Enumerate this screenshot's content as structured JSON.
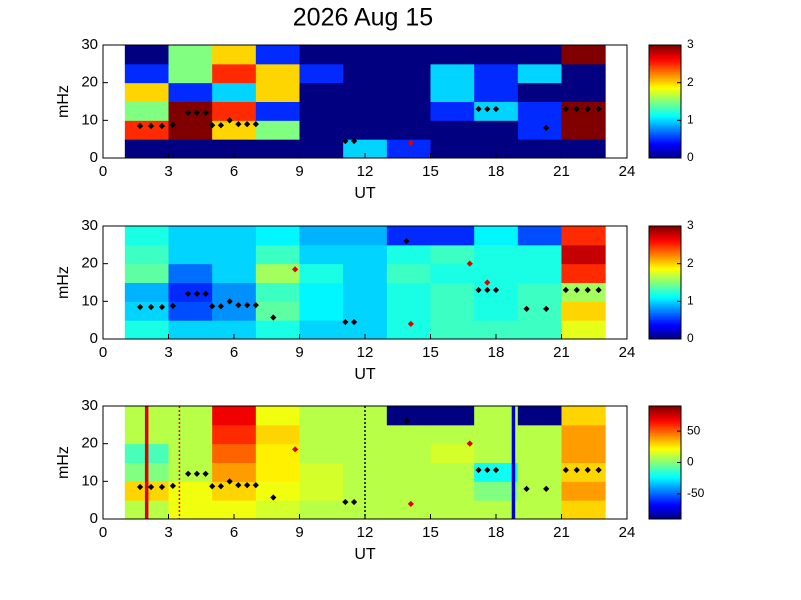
{
  "chart_data": [
    {
      "type": "heatmap",
      "title": "2026 Aug 15",
      "xlabel": "UT",
      "ylabel": "mHz",
      "xlim": [
        0,
        24
      ],
      "xticks": [
        0,
        3,
        6,
        9,
        12,
        15,
        18,
        21,
        24
      ],
      "ylim": [
        0,
        30
      ],
      "yticks": [
        0,
        10,
        20,
        30
      ],
      "x_bins": [
        1,
        3,
        5,
        7,
        9,
        11,
        13,
        15,
        17,
        19,
        21,
        23
      ],
      "y_bins": [
        0,
        5,
        10,
        15,
        20,
        25,
        30
      ],
      "z": [
        [
          0,
          0,
          0,
          0,
          0,
          1,
          0.5,
          0,
          0,
          0,
          0
        ],
        [
          2.5,
          3,
          2,
          1.5,
          0,
          0,
          0,
          0,
          0,
          0.5,
          3
        ],
        [
          1.5,
          3,
          2.5,
          0.5,
          0,
          0,
          0,
          0.5,
          1,
          0.5,
          3
        ],
        [
          2,
          0.5,
          1,
          2,
          0,
          0,
          0,
          1,
          0.5,
          0,
          0
        ],
        [
          0.5,
          1.5,
          2.5,
          2,
          0.5,
          0,
          0,
          1,
          0.5,
          1,
          0
        ],
        [
          0,
          1.5,
          2,
          0.5,
          0,
          0,
          0,
          0,
          0,
          0,
          3
        ]
      ],
      "colormap": "jet",
      "clim": [
        0,
        3
      ],
      "cticks": [
        0,
        1,
        2,
        3
      ],
      "points": [
        {
          "color": "#000000",
          "x": [
            1.7,
            2.2,
            2.7,
            3.2,
            3.9,
            4.3,
            4.7,
            5,
            5.4,
            5.8,
            6.2,
            6.6,
            7,
            11.1,
            11.5,
            17.2,
            17.6,
            18,
            20.3,
            21.2,
            21.7,
            22.2,
            22.7
          ],
          "y": [
            8.5,
            8.5,
            8.5,
            8.8,
            12,
            12,
            12,
            8.7,
            8.7,
            10,
            9,
            9,
            9,
            4.5,
            4.5,
            13,
            13,
            13,
            8,
            13,
            13,
            13,
            13
          ]
        },
        {
          "color": "#dd0000",
          "x": [
            14.1
          ],
          "y": [
            4
          ]
        }
      ],
      "vlines": []
    },
    {
      "type": "heatmap",
      "xlabel": "UT",
      "ylabel": "mHz",
      "xlim": [
        0,
        24
      ],
      "xticks": [
        0,
        3,
        6,
        9,
        12,
        15,
        18,
        21,
        24
      ],
      "ylim": [
        0,
        30
      ],
      "yticks": [
        0,
        10,
        20,
        30
      ],
      "x_bins": [
        1,
        3,
        5,
        7,
        9,
        11,
        13,
        15,
        17,
        19,
        21,
        23
      ],
      "y_bins": [
        0,
        5,
        10,
        15,
        20,
        25,
        30
      ],
      "z": [
        [
          1.2,
          1,
          1,
          1.2,
          1,
          1,
          1.2,
          1.3,
          1.3,
          1.3,
          1.8
        ],
        [
          1,
          0.6,
          0.8,
          1.4,
          1.1,
          1,
          1.2,
          1.3,
          1.2,
          1.3,
          2
        ],
        [
          0.9,
          0.5,
          0.8,
          1.3,
          1.1,
          1,
          1.2,
          1.3,
          1.2,
          1.3,
          1.6
        ],
        [
          1.4,
          0.7,
          1,
          1.6,
          1.2,
          1,
          1.3,
          1.2,
          1.2,
          1.2,
          2.5
        ],
        [
          1.3,
          1,
          1,
          1.3,
          1,
          1,
          1.2,
          1.3,
          1.2,
          1.2,
          2.8
        ],
        [
          1.2,
          1,
          1,
          1.1,
          0.9,
          0.9,
          0.5,
          0.5,
          1.1,
          0.6,
          2.5
        ]
      ],
      "colormap": "jet",
      "clim": [
        0,
        3
      ],
      "cticks": [
        0,
        1,
        2,
        3
      ],
      "points": [
        {
          "color": "#000000",
          "x": [
            1.7,
            2.2,
            2.7,
            3.2,
            3.9,
            4.3,
            4.7,
            5,
            5.4,
            5.8,
            6.2,
            6.6,
            7,
            7.8,
            11.1,
            11.5,
            13.9,
            17.2,
            17.6,
            18,
            19.4,
            20.3,
            21.2,
            21.7,
            22.2,
            22.7
          ],
          "y": [
            8.5,
            8.5,
            8.5,
            8.8,
            12,
            12,
            12,
            8.7,
            8.7,
            10,
            9,
            9,
            9,
            5.7,
            4.5,
            4.5,
            26,
            13,
            13,
            13,
            8,
            8,
            13,
            13,
            13,
            13
          ]
        },
        {
          "color": "#dd0000",
          "x": [
            8.8,
            14.1,
            16.8,
            17.6
          ],
          "y": [
            18.5,
            4,
            20,
            15
          ]
        }
      ],
      "vlines": []
    },
    {
      "type": "heatmap",
      "xlabel": "UT",
      "ylabel": "mHz",
      "xlim": [
        0,
        24
      ],
      "xticks": [
        0,
        3,
        6,
        9,
        12,
        15,
        18,
        21,
        24
      ],
      "ylim": [
        0,
        30
      ],
      "yticks": [
        0,
        10,
        20,
        30
      ],
      "x_bins": [
        1,
        3,
        5,
        7,
        9,
        11,
        13,
        15,
        17,
        19,
        21,
        23
      ],
      "y_bins": [
        0,
        5,
        10,
        15,
        20,
        25,
        30
      ],
      "z": [
        [
          10,
          20,
          20,
          15,
          10,
          10,
          10,
          10,
          10,
          10,
          30
        ],
        [
          30,
          20,
          30,
          20,
          15,
          10,
          10,
          10,
          0,
          10,
          40
        ],
        [
          0,
          10,
          40,
          25,
          15,
          10,
          10,
          10,
          -20,
          10,
          30
        ],
        [
          -10,
          10,
          50,
          25,
          10,
          10,
          10,
          15,
          10,
          10,
          40
        ],
        [
          10,
          10,
          60,
          30,
          10,
          10,
          10,
          10,
          10,
          10,
          40
        ],
        [
          10,
          10,
          70,
          20,
          10,
          10,
          -90,
          -90,
          10,
          -90,
          30
        ]
      ],
      "colormap": "jet",
      "clim": [
        -90,
        90
      ],
      "cticks": [
        -50,
        0,
        50
      ],
      "points": [
        {
          "color": "#000000",
          "x": [
            1.7,
            2.2,
            2.7,
            3.2,
            3.9,
            4.3,
            4.7,
            5,
            5.4,
            5.8,
            6.2,
            6.6,
            7,
            7.8,
            11.1,
            11.5,
            13.9,
            17.2,
            17.6,
            18,
            19.4,
            20.3,
            21.2,
            21.7,
            22.2,
            22.7
          ],
          "y": [
            8.5,
            8.5,
            8.5,
            8.8,
            12,
            12,
            12,
            8.7,
            8.7,
            10,
            9,
            9,
            9,
            5.7,
            4.5,
            4.5,
            26,
            13,
            13,
            13,
            8,
            8,
            13,
            13,
            13,
            13
          ]
        },
        {
          "color": "#dd0000",
          "x": [
            8.8,
            14.1,
            16.8
          ],
          "y": [
            18.5,
            4,
            20
          ]
        }
      ],
      "vlines": [
        {
          "x": 2,
          "color": "#dd0000",
          "style": "solid"
        },
        {
          "x": 3.5,
          "color": "#dd0000",
          "style": "dotted"
        },
        {
          "x": 12,
          "color": "#000000",
          "style": "dotted"
        },
        {
          "x": 18.8,
          "color": "#0000cc",
          "style": "solid"
        }
      ]
    }
  ]
}
